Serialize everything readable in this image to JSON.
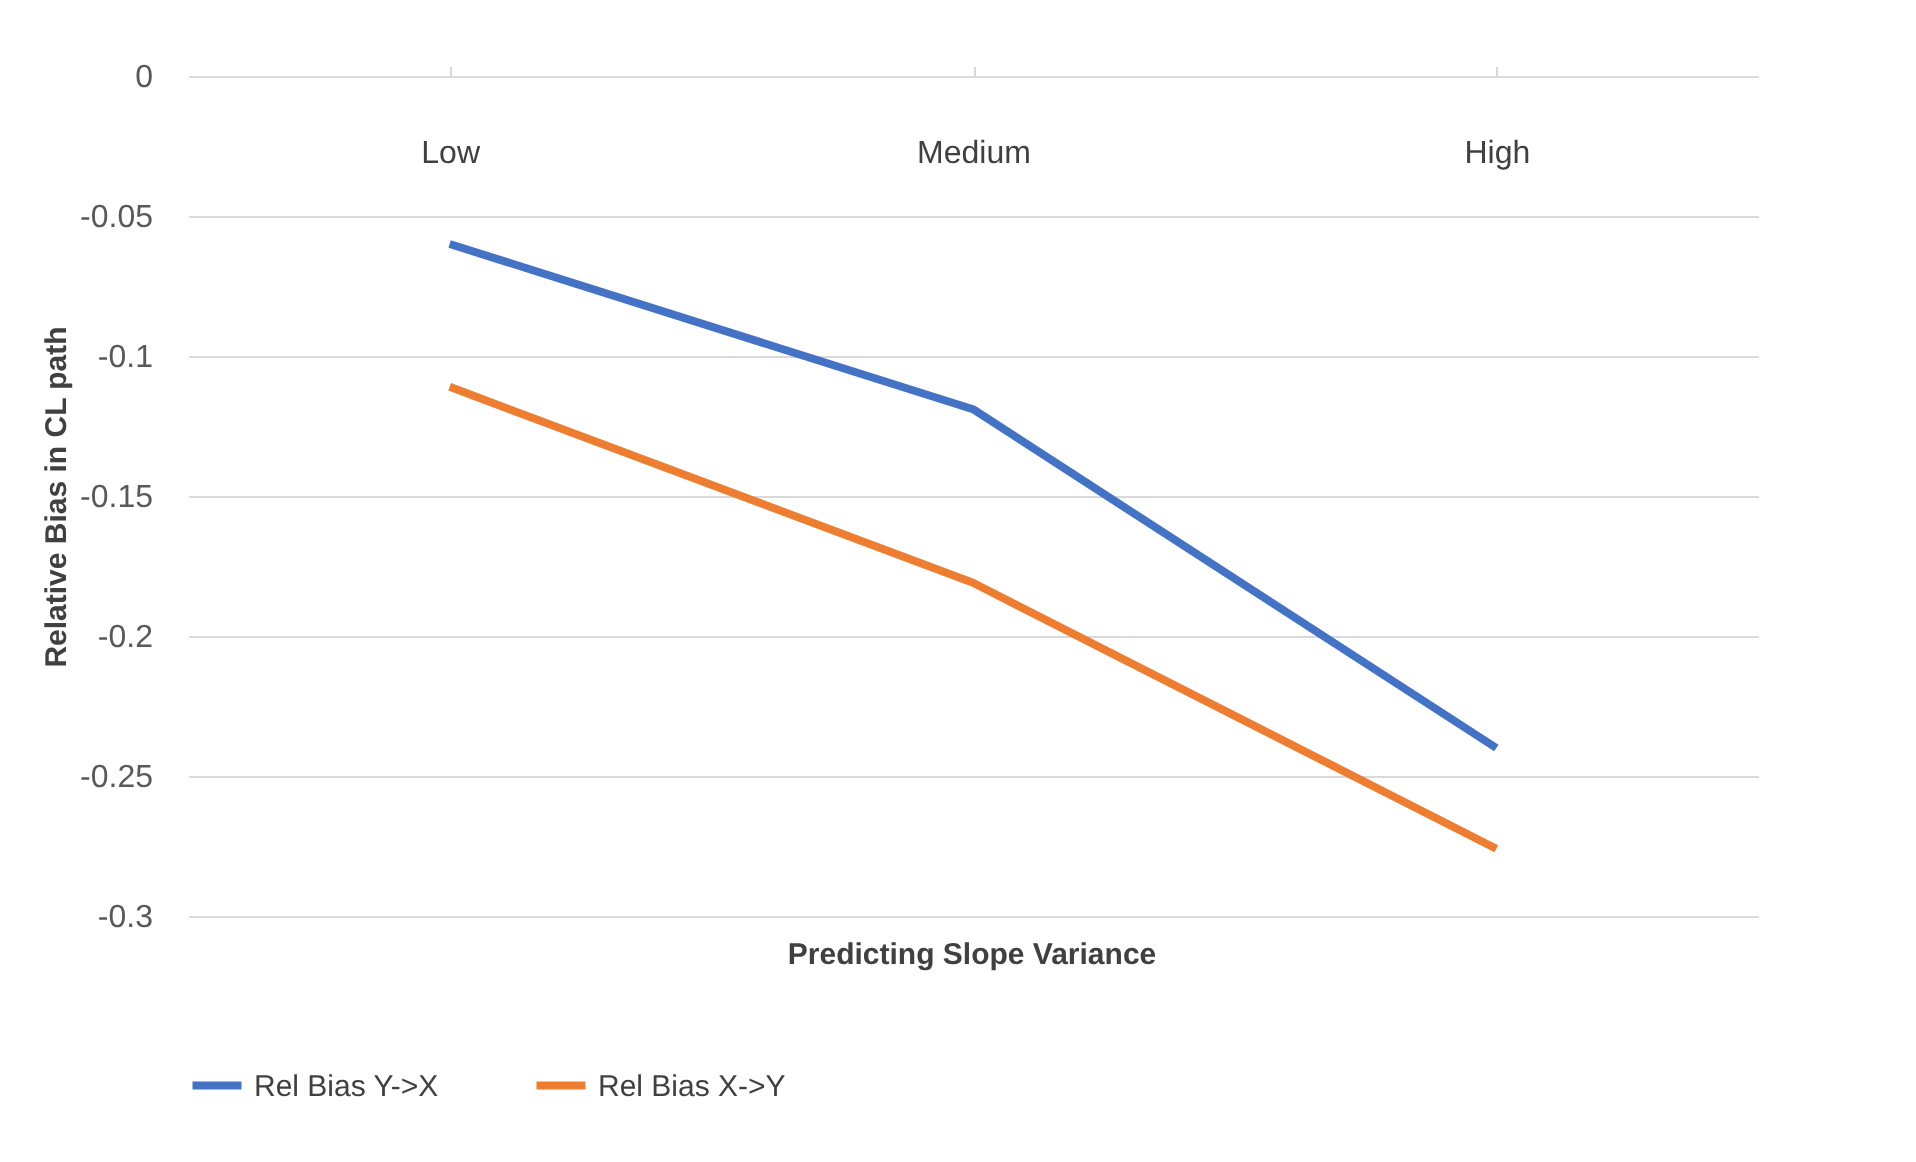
{
  "chart_data": {
    "type": "line",
    "xlabel": "Predicting Slope Variance",
    "ylabel": "Relative Bias in CL path",
    "categories": [
      "Low",
      "Medium",
      "High"
    ],
    "series": [
      {
        "name": "Rel Bias Y->X",
        "color": "#4472c4",
        "values": [
          -0.06,
          -0.119,
          -0.24
        ]
      },
      {
        "name": "Rel Bias X->Y",
        "color": "#ed7d31",
        "values": [
          -0.111,
          -0.181,
          -0.276
        ]
      }
    ],
    "ylim": [
      -0.3,
      0
    ],
    "yticks": [
      -0.3,
      -0.25,
      -0.2,
      -0.15,
      -0.1,
      -0.05,
      0
    ],
    "grid": "y",
    "legend": "bottom",
    "marker": "none",
    "line_style": "solid"
  }
}
